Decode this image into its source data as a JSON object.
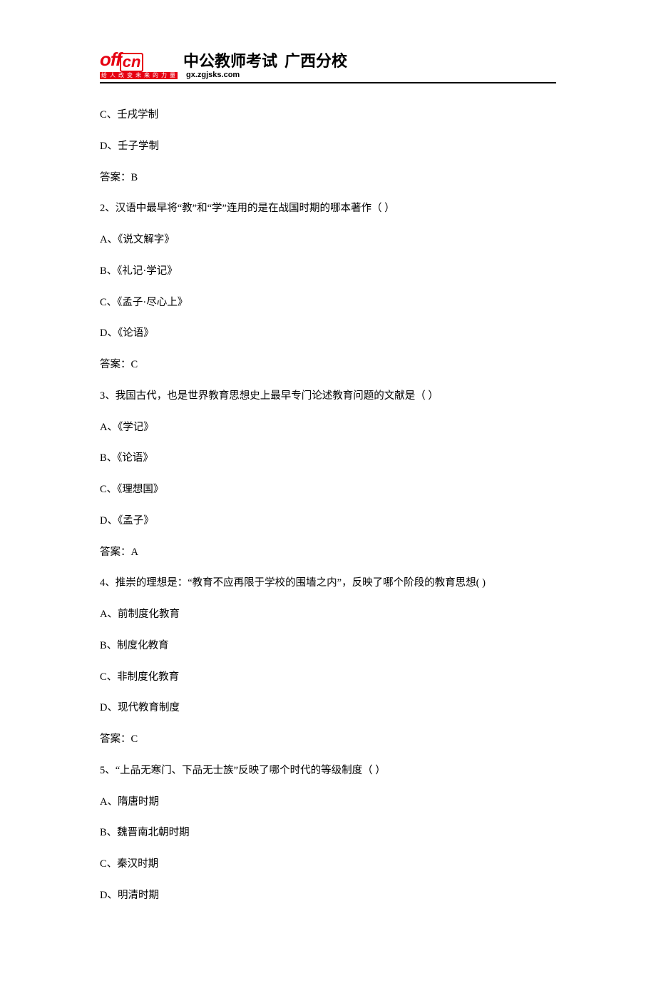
{
  "header": {
    "logo_en_left": "off",
    "logo_en_box": "cn",
    "logo_slogan": "给 人 改 变 未 来 的 力 量",
    "logo_cn_main": "中公教师考试",
    "logo_cn_branch": "广西分校",
    "logo_url": "gx.zgjsks.com"
  },
  "lines": [
    "C、壬戌学制",
    "D、壬子学制",
    "答案：B",
    "2、汉语中最早将“教”和“学”连用的是在战国时期的哪本著作（ ）",
    "A、《说文解字》",
    "B、《礼记·学记》",
    "C、《孟子·尽心上》",
    "D、《论语》",
    "答案：C",
    "3、我国古代，也是世界教育思想史上最早专门论述教育问题的文献是（ ）",
    "A、《学记》",
    "B、《论语》",
    "C、《理想国》",
    "D、《孟子》",
    "答案：A",
    "4、推崇的理想是：“教育不应再限于学校的围墙之内”，反映了哪个阶段的教育思想( )",
    "A、前制度化教育",
    "B、制度化教育",
    "C、非制度化教育",
    "D、现代教育制度",
    "答案：C",
    "5、“上品无寒门、下品无士族”反映了哪个时代的等级制度（ ）",
    "A、隋唐时期",
    "B、魏晋南北朝时期",
    "C、秦汉时期",
    "D、明清时期"
  ]
}
